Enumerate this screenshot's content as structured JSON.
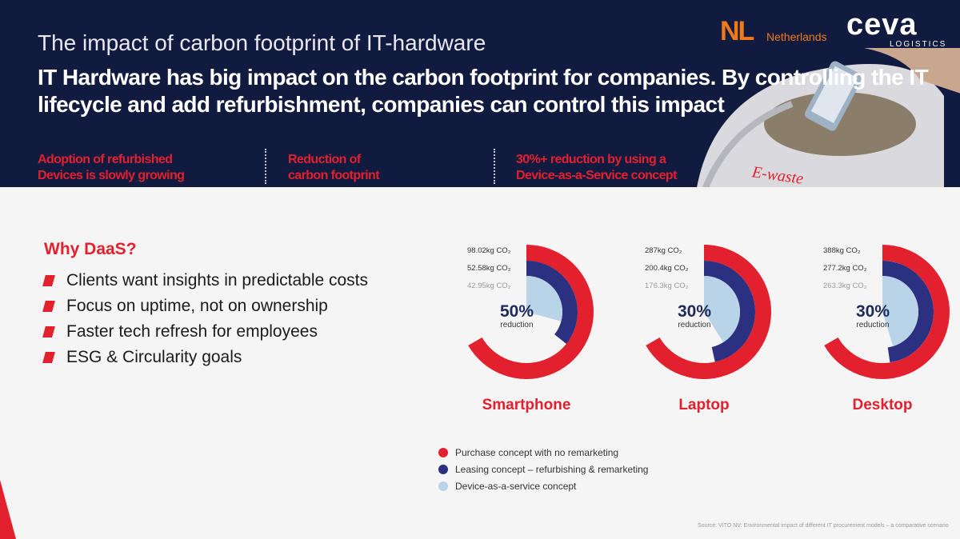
{
  "header": {
    "subtitle": "The impact of carbon footprint of IT-hardware",
    "headline": "IT Hardware has big impact on the carbon footprint for companies. By controlling the IT lifecycle and add refurbishment, companies can control this impact",
    "kpis": [
      {
        "line1": "Adoption of refurbished",
        "line2": "Devices is slowly growing"
      },
      {
        "line1": "Reduction of",
        "line2": "carbon footprint"
      },
      {
        "line1": "30%+ reduction by using a",
        "line2": "Device-as-a-Service concept"
      }
    ],
    "photo_text": "E-waste"
  },
  "logos": {
    "nl_mark": "NL",
    "nl_text": "Netherlands",
    "ceva": "ceva",
    "ceva_sub": "LOGISTICS"
  },
  "why": {
    "title": "Why DaaS?",
    "bullets": [
      "Clients want insights in predictable costs",
      "Focus on uptime, not on ownership",
      "Faster tech refresh for employees",
      "ESG & Circularity goals"
    ]
  },
  "colors": {
    "red": "#e3202e",
    "navy": "#2b3080",
    "light": "#b9d3e8",
    "banner": "#111a3f"
  },
  "chart_data": {
    "type": "pie",
    "unit": "kg CO2",
    "series": [
      {
        "name": "Purchase concept with no remarketing",
        "color": "#e3202e"
      },
      {
        "name": "Leasing concept – refurbishing & remarketing",
        "color": "#2b3080"
      },
      {
        "name": "Device-as-a-service concept",
        "color": "#b9d3e8"
      }
    ],
    "charts": [
      {
        "title": "Smartphone",
        "values": [
          98.02,
          52.58,
          42.95
        ],
        "labels": [
          "98.02kg CO₂",
          "52.58kg CO₂",
          "42.95kg CO₂"
        ],
        "reduction_pct": "50%",
        "reduction_label": "reduction"
      },
      {
        "title": "Laptop",
        "values": [
          287,
          200.4,
          176.3
        ],
        "labels": [
          "287kg CO₂",
          "200.4kg CO₂",
          "176.3kg CO₂"
        ],
        "reduction_pct": "30%",
        "reduction_label": "reduction"
      },
      {
        "title": "Desktop",
        "values": [
          388,
          277.2,
          263.3
        ],
        "labels": [
          "388kg CO₂",
          "277.2kg CO₂",
          "263.3kg CO₂"
        ],
        "reduction_pct": "30%",
        "reduction_label": "reduction"
      }
    ]
  },
  "source": "Source: VITO NV: Environmental impact of different IT procurement models – a comparative scenario"
}
